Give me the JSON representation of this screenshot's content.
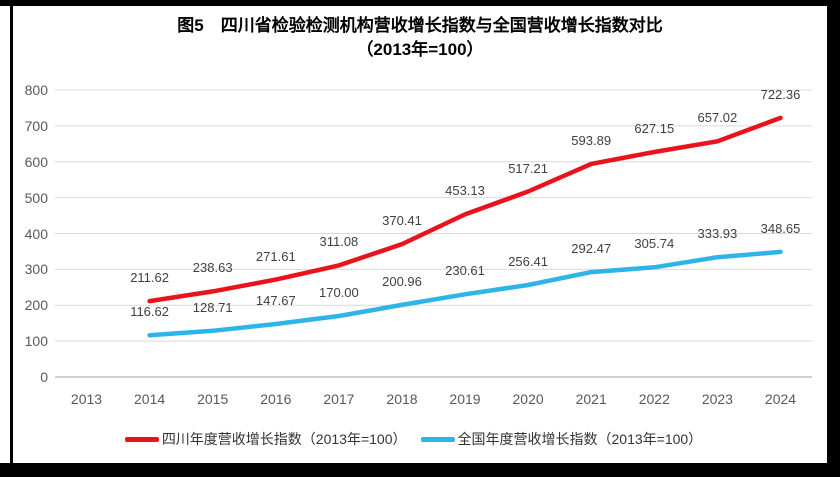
{
  "title": {
    "line1": "图5　四川省检验检测机构营收增长指数与全国营收增长指数对比",
    "line2": "（2013年=100）"
  },
  "chart_data": {
    "type": "line",
    "categories": [
      "2013",
      "2014",
      "2015",
      "2016",
      "2017",
      "2018",
      "2019",
      "2020",
      "2021",
      "2022",
      "2023",
      "2024"
    ],
    "series": [
      {
        "name": "四川年度营收增长指数（2013年=100）",
        "color": "#e8131c",
        "values": [
          null,
          211.62,
          238.63,
          271.61,
          311.08,
          370.41,
          453.13,
          517.21,
          593.89,
          627.15,
          657.02,
          722.36
        ]
      },
      {
        "name": "全国年度营收增长指数（2013年=100）",
        "color": "#2eb4e8",
        "values": [
          null,
          116.62,
          128.71,
          147.67,
          170.0,
          200.96,
          230.61,
          256.41,
          292.47,
          305.74,
          333.93,
          348.65
        ]
      }
    ],
    "title": "图5 四川省检验检测机构营收增长指数与全国营收增长指数对比（2013年=100）",
    "xlabel": "",
    "ylabel": "",
    "ylim": [
      0,
      800
    ],
    "ytick_step": 100,
    "grid": true,
    "legend_position": "bottom",
    "data_labels": true
  },
  "colors": {
    "grid": "#d9d9d9",
    "axis_line": "#bfbfbf",
    "axis_text": "#595959",
    "data_label_text": "#404040",
    "frame": "#000000"
  }
}
